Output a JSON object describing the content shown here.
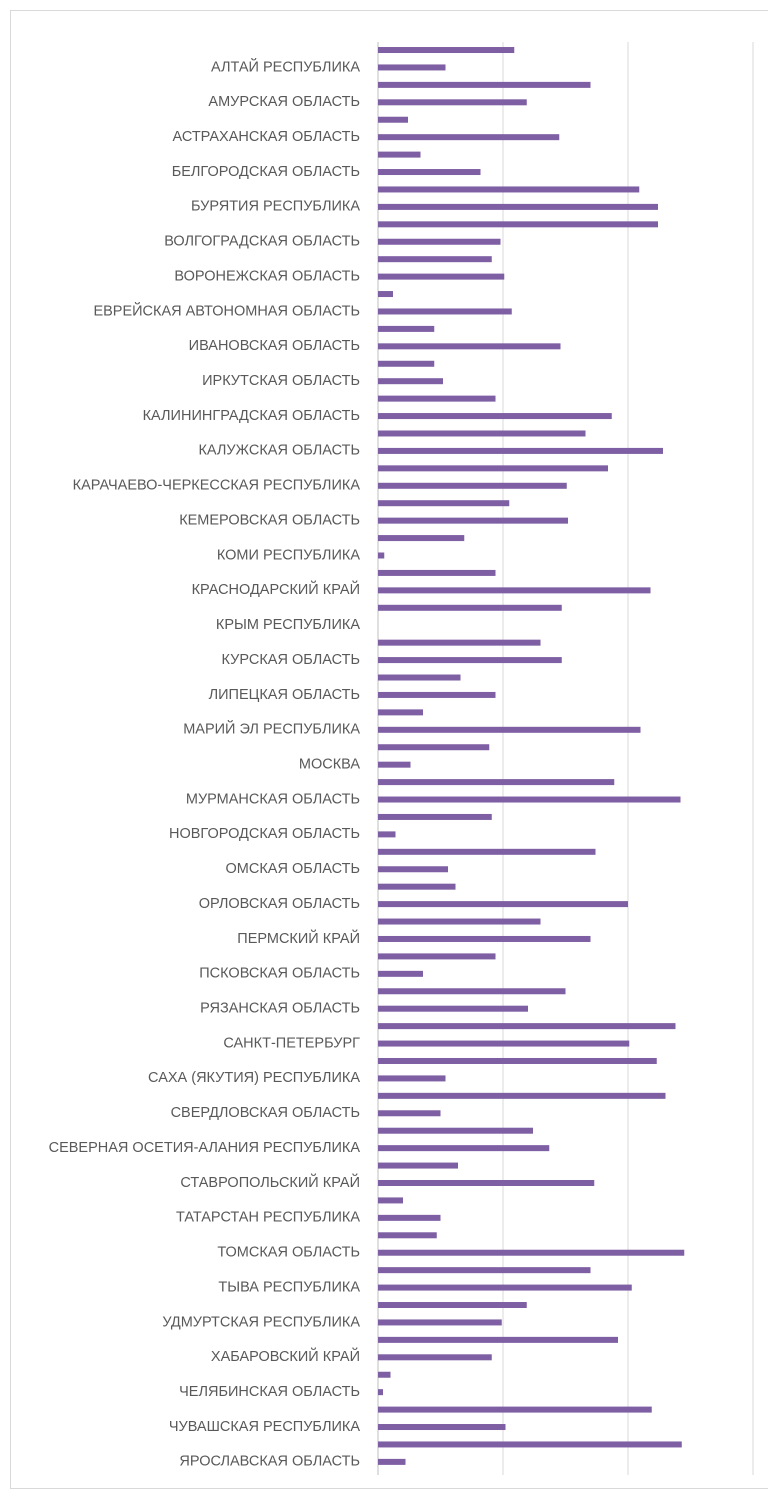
{
  "chart_data": {
    "type": "bar",
    "orientation": "horizontal",
    "color": "#7e5fa3",
    "grid": true,
    "xlim": [
      0,
      3
    ],
    "xticks": [
      0,
      1,
      2,
      3
    ],
    "categories": [
      null,
      "АЛТАЙ РЕСПУБЛИКА",
      null,
      "АМУРСКАЯ ОБЛАСТЬ",
      null,
      "АСТРАХАНСКАЯ ОБЛАСТЬ",
      null,
      "БЕЛГОРОДСКАЯ ОБЛАСТЬ",
      null,
      "БУРЯТИЯ РЕСПУБЛИКА",
      null,
      "ВОЛГОГРАДСКАЯ ОБЛАСТЬ",
      null,
      "ВОРОНЕЖСКАЯ ОБЛАСТЬ",
      null,
      "ЕВРЕЙСКАЯ АВТОНОМНАЯ ОБЛАСТЬ",
      null,
      "ИВАНОВСКАЯ ОБЛАСТЬ",
      null,
      "ИРКУТСКАЯ ОБЛАСТЬ",
      null,
      "КАЛИНИНГРАДСКАЯ ОБЛАСТЬ",
      null,
      "КАЛУЖСКАЯ ОБЛАСТЬ",
      null,
      "КАРАЧАЕВО-ЧЕРКЕССКАЯ РЕСПУБЛИКА",
      null,
      "КЕМЕРОВСКАЯ ОБЛАСТЬ",
      null,
      "КОМИ РЕСПУБЛИКА",
      null,
      "КРАСНОДАРСКИЙ КРАЙ",
      null,
      "КРЫМ РЕСПУБЛИКА",
      null,
      "КУРСКАЯ ОБЛАСТЬ",
      null,
      "ЛИПЕЦКАЯ ОБЛАСТЬ",
      null,
      "МАРИЙ ЭЛ РЕСПУБЛИКА",
      null,
      "МОСКВА",
      null,
      "МУРМАНСКАЯ ОБЛАСТЬ",
      null,
      "НОВГОРОДСКАЯ ОБЛАСТЬ",
      null,
      "ОМСКАЯ ОБЛАСТЬ",
      null,
      "ОРЛОВСКАЯ ОБЛАСТЬ",
      null,
      "ПЕРМСКИЙ КРАЙ",
      null,
      "ПСКОВСКАЯ ОБЛАСТЬ",
      null,
      "РЯЗАНСКАЯ ОБЛАСТЬ",
      null,
      "САНКТ-ПЕТЕРБУРГ",
      null,
      "САХА (ЯКУТИЯ) РЕСПУБЛИКА",
      null,
      "СВЕРДЛОВСКАЯ ОБЛАСТЬ",
      null,
      "СЕВЕРНАЯ ОСЕТИЯ-АЛАНИЯ РЕСПУБЛИКА",
      null,
      "СТАВРОПОЛЬСКИЙ КРАЙ",
      null,
      "ТАТАРСТАН РЕСПУБЛИКА",
      null,
      "ТОМСКАЯ ОБЛАСТЬ",
      null,
      "ТЫВА РЕСПУБЛИКА",
      null,
      "УДМУРТСКАЯ РЕСПУБЛИКА",
      null,
      "ХАБАРОВСКИЙ КРАЙ",
      null,
      "ЧЕЛЯБИНСКАЯ ОБЛАСТЬ",
      null,
      "ЧУВАШСКАЯ РЕСПУБЛИКА",
      null,
      "ЯРОСЛАВСКАЯ ОБЛАСТЬ"
    ],
    "values": [
      1.09,
      0.54,
      1.7,
      1.19,
      0.24,
      1.45,
      0.34,
      0.82,
      2.09,
      2.24,
      2.24,
      0.98,
      0.91,
      1.01,
      0.12,
      1.07,
      0.45,
      1.46,
      0.45,
      0.52,
      0.94,
      1.87,
      1.66,
      2.28,
      1.84,
      1.51,
      1.05,
      1.52,
      0.69,
      0.05,
      0.94,
      2.18,
      1.47,
      0,
      1.3,
      1.47,
      0.66,
      0.94,
      0.36,
      2.1,
      0.89,
      0.26,
      1.89,
      2.42,
      0.91,
      0.14,
      1.74,
      0.56,
      0.62,
      2.0,
      1.3,
      1.7,
      0.94,
      0.36,
      1.5,
      1.2,
      2.38,
      2.01,
      2.23,
      0.54,
      2.3,
      0.5,
      1.24,
      1.37,
      0.64,
      1.73,
      0.2,
      0.5,
      0.47,
      2.45,
      1.7,
      2.03,
      1.19,
      0.99,
      1.92,
      0.91,
      0.1,
      0.04,
      2.19,
      1.02,
      2.43,
      0.22
    ]
  }
}
